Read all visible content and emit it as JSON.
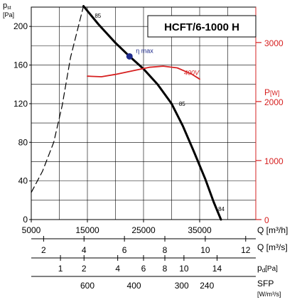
{
  "chart_data": {
    "type": "line",
    "title": "HCFT/6-1000 H",
    "y_left_label": "p",
    "y_left_label_sub": "st",
    "y_left_unit": "[Pa]",
    "y_left_ticks": [
      0,
      40,
      80,
      120,
      160,
      200
    ],
    "y_left_range": [
      0,
      220
    ],
    "y_right_label": "P",
    "y_right_unit": "[W]",
    "y_right_ticks": [
      0,
      1000,
      2000,
      3000
    ],
    "y_right_range": [
      0,
      3600
    ],
    "x_unit": "Q [m³/h]",
    "x_range": [
      5000,
      45000
    ],
    "x_ticks": [
      5000,
      15000,
      25000,
      35000
    ],
    "q_ms_axis": {
      "unit": "Q [m³/s]",
      "ticks": [
        {
          "label": "2",
          "q": 7200
        },
        {
          "label": "4",
          "q": 14400
        },
        {
          "label": "6",
          "q": 21600
        },
        {
          "label": "8",
          "q": 28800
        },
        {
          "label": "10",
          "q": 36000
        },
        {
          "label": "12",
          "q": 43200
        }
      ]
    },
    "pd_axis": {
      "unit": "p",
      "unit_sub": "d",
      "unit_tail": "[Pa]",
      "ticks": [
        {
          "label": "1",
          "q": 10200
        },
        {
          "label": "2",
          "q": 14400
        },
        {
          "label": "4",
          "q": 20400
        },
        {
          "label": "6",
          "q": 25000
        },
        {
          "label": "8",
          "q": 28800
        },
        {
          "label": "10",
          "q": 32200
        },
        {
          "label": "14",
          "q": 38100
        }
      ]
    },
    "sfp_axis": {
      "unit": "SFP",
      "unit_line2": "[W/m³/s]",
      "ticks": [
        {
          "label": "600",
          "q": 15000
        },
        {
          "label": "400",
          "q": 23300
        },
        {
          "label": "300",
          "q": 31800
        },
        {
          "label": "240",
          "q": 36300
        }
      ]
    },
    "series": [
      {
        "role": "pressure",
        "color": "#000000",
        "points": [
          [
            14300,
            221
          ],
          [
            17000,
            202
          ],
          [
            20000,
            183
          ],
          [
            22500,
            169
          ],
          [
            25000,
            156
          ],
          [
            27500,
            140
          ],
          [
            30000,
            120
          ],
          [
            32000,
            97
          ],
          [
            34000,
            70
          ],
          [
            36000,
            42
          ],
          [
            37500,
            18
          ],
          [
            38800,
            0
          ]
        ]
      },
      {
        "role": "stall-region",
        "style": "dashed",
        "color": "#000000",
        "points": [
          [
            5000,
            28
          ],
          [
            7000,
            50
          ],
          [
            9000,
            80
          ],
          [
            10500,
            118
          ],
          [
            12000,
            168
          ],
          [
            14300,
            221
          ]
        ]
      },
      {
        "name": "400V",
        "axis": "right",
        "color": "#d62020",
        "points": [
          [
            15000,
            2430
          ],
          [
            17500,
            2420
          ],
          [
            20000,
            2460
          ],
          [
            23000,
            2520
          ],
          [
            26000,
            2580
          ],
          [
            28500,
            2600
          ],
          [
            31000,
            2570
          ],
          [
            33500,
            2470
          ],
          [
            35000,
            2380
          ]
        ]
      }
    ],
    "annotations": [
      {
        "text": "η max",
        "x": 22500,
        "y": 169,
        "marker": true,
        "color": "#1e2a8c"
      },
      {
        "text": "85",
        "x": 15800,
        "y": 211
      },
      {
        "text": "85",
        "x": 30800,
        "y": 120
      },
      {
        "text": "84",
        "x": 37800,
        "y": 11
      }
    ],
    "grid": true
  }
}
